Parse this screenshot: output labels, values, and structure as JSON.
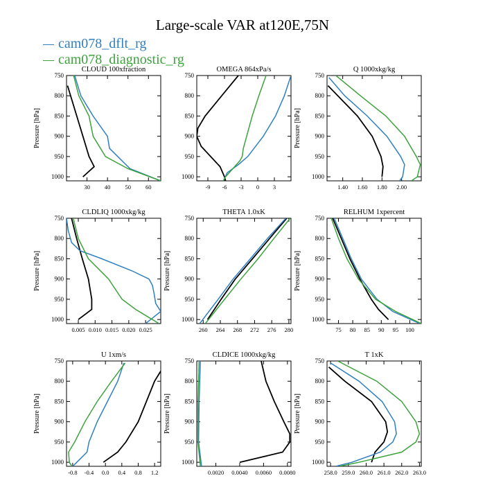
{
  "title": "Large-scale VAR at120E,75N",
  "legend": [
    {
      "name": "cam078_dflt_rg",
      "color": "#2f7fc0"
    },
    {
      "name": "cam078_diagnostic_rg",
      "color": "#3ca23c"
    }
  ],
  "colors": {
    "dflt": "#2f7fc0",
    "diagnostic": "#3ca23c",
    "obs": "#000000"
  },
  "chart_data": [
    {
      "type": "line",
      "title": "CLOUD  100xfraction",
      "ylabel": "Pressure [hPa]",
      "ylim": [
        750,
        1010
      ],
      "xlim": [
        20,
        66
      ],
      "yticks": [
        "750",
        "800",
        "850",
        "900",
        "950",
        "1000"
      ],
      "xticks": [
        {
          "v": 30,
          "label": "30"
        },
        {
          "v": 40,
          "label": "40"
        },
        {
          "v": 50,
          "label": "50"
        },
        {
          "v": 60,
          "label": "60"
        }
      ],
      "series": [
        {
          "key": "obs",
          "p": [
            775,
            800,
            850,
            900,
            950,
            975,
            1000
          ],
          "v": [
            20.5,
            22,
            25,
            28,
            31,
            33.5,
            28
          ]
        },
        {
          "key": "dflt",
          "p": [
            750,
            800,
            850,
            900,
            930,
            980,
            1010
          ],
          "v": [
            24,
            27,
            33,
            40,
            41,
            51,
            66
          ]
        },
        {
          "key": "diagnostic",
          "p": [
            750,
            800,
            850,
            900,
            950,
            980,
            1010
          ],
          "v": [
            23.5,
            26,
            31,
            33,
            39,
            50,
            66
          ]
        }
      ]
    },
    {
      "type": "line",
      "title": "OMEGA  864xPa/s",
      "ylabel": "",
      "ylim": [
        750,
        1010
      ],
      "xlim": [
        -11,
        6
      ],
      "yticks": [
        "750",
        "800",
        "850",
        "900",
        "950",
        "1000"
      ],
      "xticks": [
        {
          "v": -9,
          "label": "-9"
        },
        {
          "v": -6,
          "label": "-6"
        },
        {
          "v": -3,
          "label": "-3"
        },
        {
          "v": 0,
          "label": "0"
        },
        {
          "v": 3,
          "label": "3"
        }
      ],
      "series": [
        {
          "key": "obs",
          "p": [
            750,
            800,
            850,
            880,
            900,
            925,
            950,
            975,
            1000,
            1010
          ],
          "v": [
            -3.5,
            -6.5,
            -9.5,
            -10.8,
            -11,
            -10.2,
            -8.5,
            -6.8,
            -6,
            -5.8
          ]
        },
        {
          "key": "dflt",
          "p": [
            750,
            800,
            850,
            900,
            950,
            970,
            990,
            1010
          ],
          "v": [
            6,
            4.8,
            3.2,
            1,
            -1.8,
            -3.5,
            -5.5,
            -6.2
          ]
        },
        {
          "key": "diagnostic",
          "p": [
            750,
            800,
            850,
            900,
            930,
            950,
            960,
            980,
            1000,
            1010
          ],
          "v": [
            1.5,
            0.2,
            -1,
            -2,
            -2.6,
            -2.8,
            -3.2,
            -4.5,
            -5.8,
            -6.2
          ]
        }
      ]
    },
    {
      "type": "line",
      "title": "Q  1000xkg/kg",
      "ylabel": "Pressure [hPa]",
      "ylim": [
        750,
        1010
      ],
      "xlim": [
        1.24,
        2.2
      ],
      "yticks": [
        "750",
        "800",
        "850",
        "900",
        "950",
        "1000"
      ],
      "xticks": [
        {
          "v": 1.4,
          "label": "1.40"
        },
        {
          "v": 1.6,
          "label": "1.60"
        },
        {
          "v": 1.8,
          "label": "1.80"
        },
        {
          "v": 2.0,
          "label": "2.00"
        }
      ],
      "series": [
        {
          "key": "obs",
          "p": [
            775,
            800,
            850,
            900,
            950,
            975,
            1000
          ],
          "v": [
            1.25,
            1.35,
            1.55,
            1.7,
            1.79,
            1.81,
            1.8
          ]
        },
        {
          "key": "dflt",
          "p": [
            755,
            800,
            850,
            900,
            950,
            970,
            1000,
            1010
          ],
          "v": [
            1.26,
            1.42,
            1.65,
            1.85,
            1.99,
            2.03,
            2.01,
            1.98
          ]
        },
        {
          "key": "diagnostic",
          "p": [
            750,
            800,
            850,
            900,
            950,
            970,
            1000,
            1010
          ],
          "v": [
            1.33,
            1.58,
            1.84,
            2.03,
            2.15,
            2.19,
            2.16,
            2.1
          ]
        }
      ]
    },
    {
      "type": "line",
      "title": "CLDLIQ  1000xkg/kg",
      "ylabel": "Pressure [hPa]",
      "ylim": [
        750,
        1010
      ],
      "xlim": [
        0.0015,
        0.0295
      ],
      "yticks": [
        "750",
        "800",
        "850",
        "900",
        "950",
        "1000"
      ],
      "xticks": [
        {
          "v": 0.005,
          "label": "0.005"
        },
        {
          "v": 0.01,
          "label": "0.010"
        },
        {
          "v": 0.015,
          "label": "0.015"
        },
        {
          "v": 0.02,
          "label": "0.020"
        },
        {
          "v": 0.025,
          "label": "0.025"
        }
      ],
      "series": [
        {
          "key": "obs",
          "p": [
            750,
            800,
            850,
            900,
            950,
            975,
            1000
          ],
          "v": [
            0.003,
            0.0045,
            0.0062,
            0.008,
            0.009,
            0.009,
            0.005
          ]
        },
        {
          "key": "dflt",
          "p": [
            750,
            780,
            810,
            830,
            850,
            880,
            900,
            915,
            935,
            960,
            980,
            1000,
            1010
          ],
          "v": [
            0.0015,
            0.002,
            0.003,
            0.0055,
            0.012,
            0.021,
            0.026,
            0.027,
            0.0275,
            0.028,
            0.0295,
            0.0265,
            0.025
          ]
        },
        {
          "key": "diagnostic",
          "p": [
            750,
            800,
            850,
            900,
            950,
            975,
            1000,
            1010
          ],
          "v": [
            0.0035,
            0.005,
            0.008,
            0.014,
            0.018,
            0.022,
            0.027,
            0.029
          ]
        }
      ]
    },
    {
      "type": "line",
      "title": "THETA  1.0xK",
      "ylabel": "Pressure [hPa]",
      "ylim": [
        750,
        1010
      ],
      "xlim": [
        258.5,
        280.5
      ],
      "yticks": [
        "750",
        "800",
        "850",
        "900",
        "950",
        "1000"
      ],
      "xticks": [
        {
          "v": 260,
          "label": "260"
        },
        {
          "v": 264,
          "label": "264"
        },
        {
          "v": 268,
          "label": "268"
        },
        {
          "v": 272,
          "label": "272"
        },
        {
          "v": 276,
          "label": "276"
        },
        {
          "v": 280,
          "label": "280"
        }
      ],
      "series": [
        {
          "key": "obs",
          "p": [
            750,
            800,
            850,
            900,
            950,
            1000
          ],
          "v": [
            279.5,
            275.5,
            271.5,
            267.5,
            264.2,
            261
          ]
        },
        {
          "key": "dflt",
          "p": [
            750,
            800,
            850,
            900,
            950,
            1010
          ],
          "v": [
            279.3,
            275,
            271,
            267,
            263.5,
            259.2
          ]
        },
        {
          "key": "diagnostic",
          "p": [
            750,
            800,
            850,
            900,
            950,
            1010
          ],
          "v": [
            280.3,
            276.5,
            272.8,
            268.8,
            265,
            260.5
          ]
        }
      ]
    },
    {
      "type": "line",
      "title": "RELHUM  1xpercent",
      "ylabel": "Pressure [hPa]",
      "ylim": [
        750,
        1010
      ],
      "xlim": [
        71,
        104
      ],
      "yticks": [
        "750",
        "800",
        "850",
        "900",
        "950",
        "1000"
      ],
      "xticks": [
        {
          "v": 75,
          "label": "75"
        },
        {
          "v": 80,
          "label": "80"
        },
        {
          "v": 85,
          "label": "85"
        },
        {
          "v": 90,
          "label": "90"
        },
        {
          "v": 95,
          "label": "95"
        },
        {
          "v": 100,
          "label": "100"
        }
      ],
      "series": [
        {
          "key": "obs",
          "p": [
            750,
            800,
            850,
            900,
            950,
            975,
            1000
          ],
          "v": [
            73,
            76,
            79,
            82.5,
            86.5,
            89,
            92.5
          ]
        },
        {
          "key": "dflt",
          "p": [
            750,
            800,
            850,
            900,
            950,
            980,
            1010
          ],
          "v": [
            73.5,
            76.5,
            79.5,
            83,
            88.5,
            94,
            103.5
          ]
        },
        {
          "key": "diagnostic",
          "p": [
            750,
            800,
            850,
            900,
            950,
            980,
            1010
          ],
          "v": [
            72.5,
            75,
            78,
            82,
            88,
            95,
            104
          ]
        }
      ]
    },
    {
      "type": "line",
      "title": "U  1xm/s",
      "ylabel": "Pressure [hPa]",
      "ylim": [
        750,
        1010
      ],
      "xlim": [
        -0.95,
        1.35
      ],
      "yticks": [
        "750",
        "800",
        "850",
        "900",
        "950",
        "1000"
      ],
      "xticks": [
        {
          "v": -0.8,
          "label": "-0.8"
        },
        {
          "v": -0.4,
          "label": "-0.4"
        },
        {
          "v": 0.0,
          "label": "0.0"
        },
        {
          "v": 0.4,
          "label": "0.4"
        },
        {
          "v": 0.8,
          "label": "0.8"
        },
        {
          "v": 1.2,
          "label": "1.2"
        }
      ],
      "series": [
        {
          "key": "obs",
          "p": [
            775,
            800,
            850,
            900,
            950,
            975,
            1000
          ],
          "v": [
            1.35,
            1.2,
            1.0,
            0.8,
            0.5,
            0.3,
            -0.05
          ]
        },
        {
          "key": "dflt",
          "p": [
            755,
            800,
            850,
            900,
            950,
            975,
            1000,
            1010
          ],
          "v": [
            0.45,
            0.3,
            0.05,
            -0.2,
            -0.4,
            -0.45,
            -0.7,
            -0.8
          ]
        },
        {
          "key": "diagnostic",
          "p": [
            755,
            800,
            850,
            900,
            950,
            975,
            1000,
            1010
          ],
          "v": [
            0.48,
            0.15,
            -0.2,
            -0.5,
            -0.75,
            -0.9,
            -0.88,
            -0.82
          ]
        }
      ]
    },
    {
      "type": "line",
      "title": "CLDICE  1000xkg/kg",
      "ylabel": "Pressure [hPa]",
      "ylim": [
        750,
        1010
      ],
      "xlim": [
        0.0004,
        0.0083
      ],
      "yticks": [
        "750",
        "800",
        "850",
        "900",
        "950",
        "1000"
      ],
      "xticks": [
        {
          "v": 0.002,
          "label": "0.0020"
        },
        {
          "v": 0.004,
          "label": "0.0040"
        },
        {
          "v": 0.006,
          "label": "0.0060"
        },
        {
          "v": 0.008,
          "label": "0.0080"
        }
      ],
      "series": [
        {
          "key": "obs",
          "p": [
            750,
            800,
            850,
            900,
            930,
            950,
            975,
            1000
          ],
          "v": [
            0.0058,
            0.0062,
            0.0069,
            0.0077,
            0.0082,
            0.0082,
            0.0076,
            0.004
          ]
        },
        {
          "key": "dflt",
          "p": [
            750,
            850,
            950,
            1010
          ],
          "v": [
            0.0007,
            0.0006,
            0.00055,
            0.0008
          ]
        },
        {
          "key": "diagnostic",
          "p": [
            750,
            850,
            950,
            1010
          ],
          "v": [
            0.0006,
            0.0005,
            0.0005,
            0.0007
          ]
        }
      ]
    },
    {
      "type": "line",
      "title": "T  1xK",
      "ylabel": "Pressure [hPa]",
      "ylim": [
        750,
        1010
      ],
      "xlim": [
        257.8,
        263.1
      ],
      "yticks": [
        "750",
        "800",
        "850",
        "900",
        "950",
        "1000"
      ],
      "xticks": [
        {
          "v": 258,
          "label": "258.0"
        },
        {
          "v": 259,
          "label": "259.0"
        },
        {
          "v": 260,
          "label": "260.0"
        },
        {
          "v": 261,
          "label": "261.0"
        },
        {
          "v": 262,
          "label": "262.0"
        },
        {
          "v": 263,
          "label": "263.0"
        }
      ],
      "series": [
        {
          "key": "obs",
          "p": [
            765,
            800,
            850,
            900,
            925,
            950,
            975,
            1000
          ],
          "v": [
            257.9,
            258.8,
            260.3,
            261.1,
            261.2,
            261.0,
            260.5,
            260.3
          ]
        },
        {
          "key": "dflt",
          "p": [
            755,
            800,
            850,
            900,
            930,
            950,
            975,
            1000,
            1010
          ],
          "v": [
            258.0,
            259.6,
            260.9,
            261.6,
            261.7,
            261.5,
            260.8,
            259.2,
            258.3
          ]
        },
        {
          "key": "diagnostic",
          "p": [
            750,
            800,
            850,
            900,
            930,
            950,
            975,
            1000,
            1010
          ],
          "v": [
            258.4,
            260.6,
            262.0,
            262.8,
            263.0,
            262.8,
            262.0,
            259.6,
            258.5
          ]
        }
      ]
    }
  ]
}
